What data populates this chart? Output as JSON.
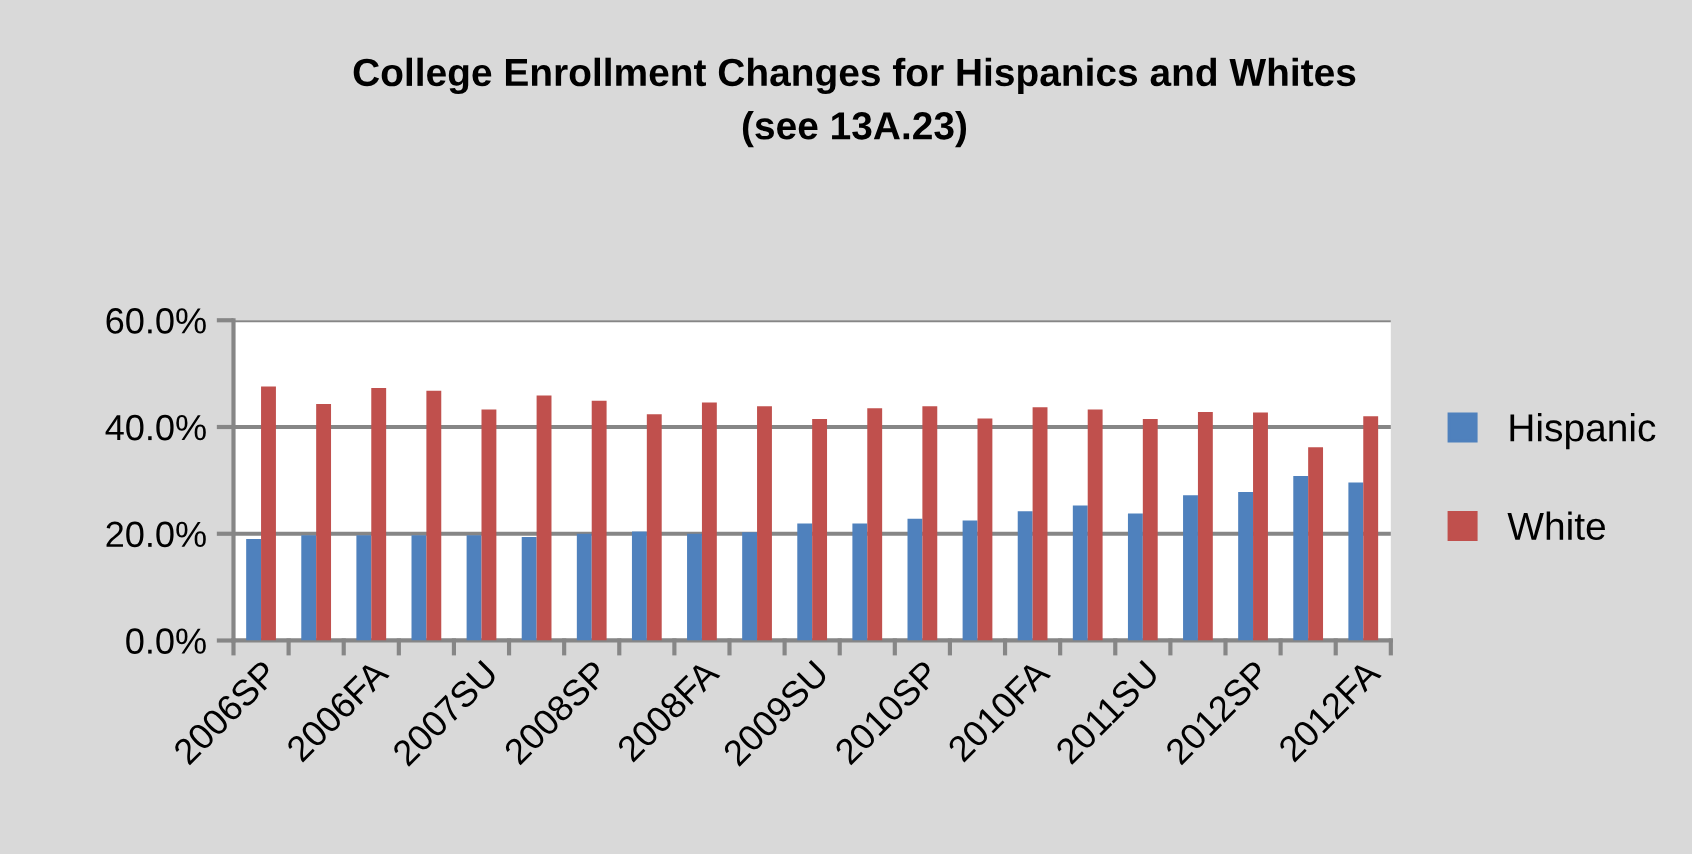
{
  "chart_data": {
    "type": "bar",
    "title": "College Enrollment Changes for Hispanics and Whites\n(see 13A.23)",
    "categories": [
      "2006SP",
      null,
      "2006FA",
      null,
      "2007SU",
      null,
      "2008SP",
      null,
      "2008FA",
      null,
      "2009SU",
      null,
      "2010SP",
      null,
      "2010FA",
      null,
      "2011SU",
      null,
      "2012SP",
      null,
      "2012FA"
    ],
    "series": [
      {
        "name": "Hispanic",
        "color": "#4f81bd",
        "values": [
          19.0,
          19.7,
          19.7,
          19.7,
          19.7,
          19.4,
          20.0,
          20.4,
          20.0,
          20.3,
          21.9,
          21.9,
          22.8,
          22.5,
          24.2,
          25.3,
          23.8,
          27.2,
          27.8,
          30.8,
          29.6
        ]
      },
      {
        "name": "White",
        "color": "#c0504d",
        "values": [
          47.6,
          44.3,
          47.3,
          46.8,
          43.3,
          45.9,
          44.9,
          42.4,
          44.6,
          43.9,
          41.5,
          43.5,
          43.9,
          41.6,
          43.7,
          43.3,
          41.5,
          42.8,
          42.7,
          36.2,
          42.0
        ]
      }
    ],
    "ylim": [
      0,
      60
    ],
    "yticks": [
      {
        "value": 0,
        "label": "0.0%"
      },
      {
        "value": 20,
        "label": "20.0%"
      },
      {
        "value": 40,
        "label": "40.0%"
      },
      {
        "value": 60,
        "label": "60.0%"
      }
    ],
    "grid": "y",
    "legend": "right"
  }
}
